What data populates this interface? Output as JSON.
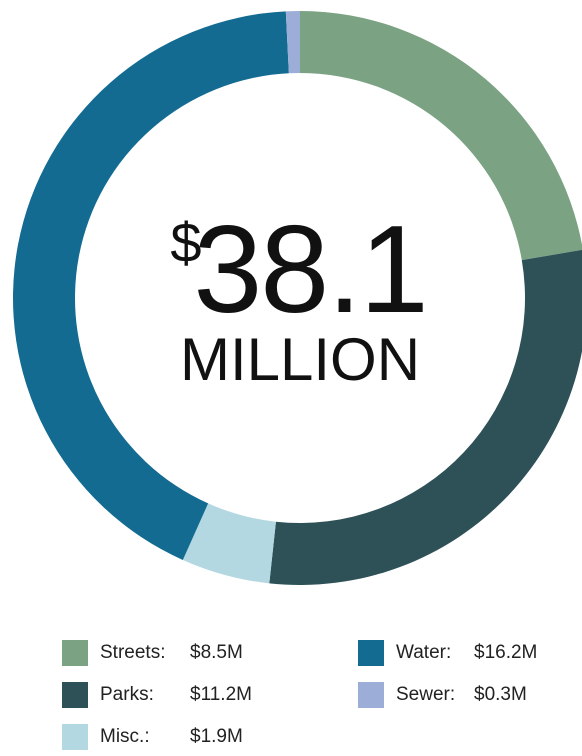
{
  "chart_data": {
    "type": "donut",
    "center_label": {
      "prefix": "$",
      "value": "38.1",
      "unit": "MILLION"
    },
    "categories": [
      "Streets:",
      "Parks:",
      "Misc.:",
      "Water:",
      "Sewer:"
    ],
    "values": [
      8.5,
      11.2,
      1.9,
      16.2,
      0.3
    ],
    "value_labels": [
      "$8.5M",
      "$11.2M",
      "$1.9M",
      "$16.2M",
      "$0.3M"
    ],
    "colors": [
      "#7ba383",
      "#2d5157",
      "#b3d8e1",
      "#136b92",
      "#9caed8"
    ]
  }
}
